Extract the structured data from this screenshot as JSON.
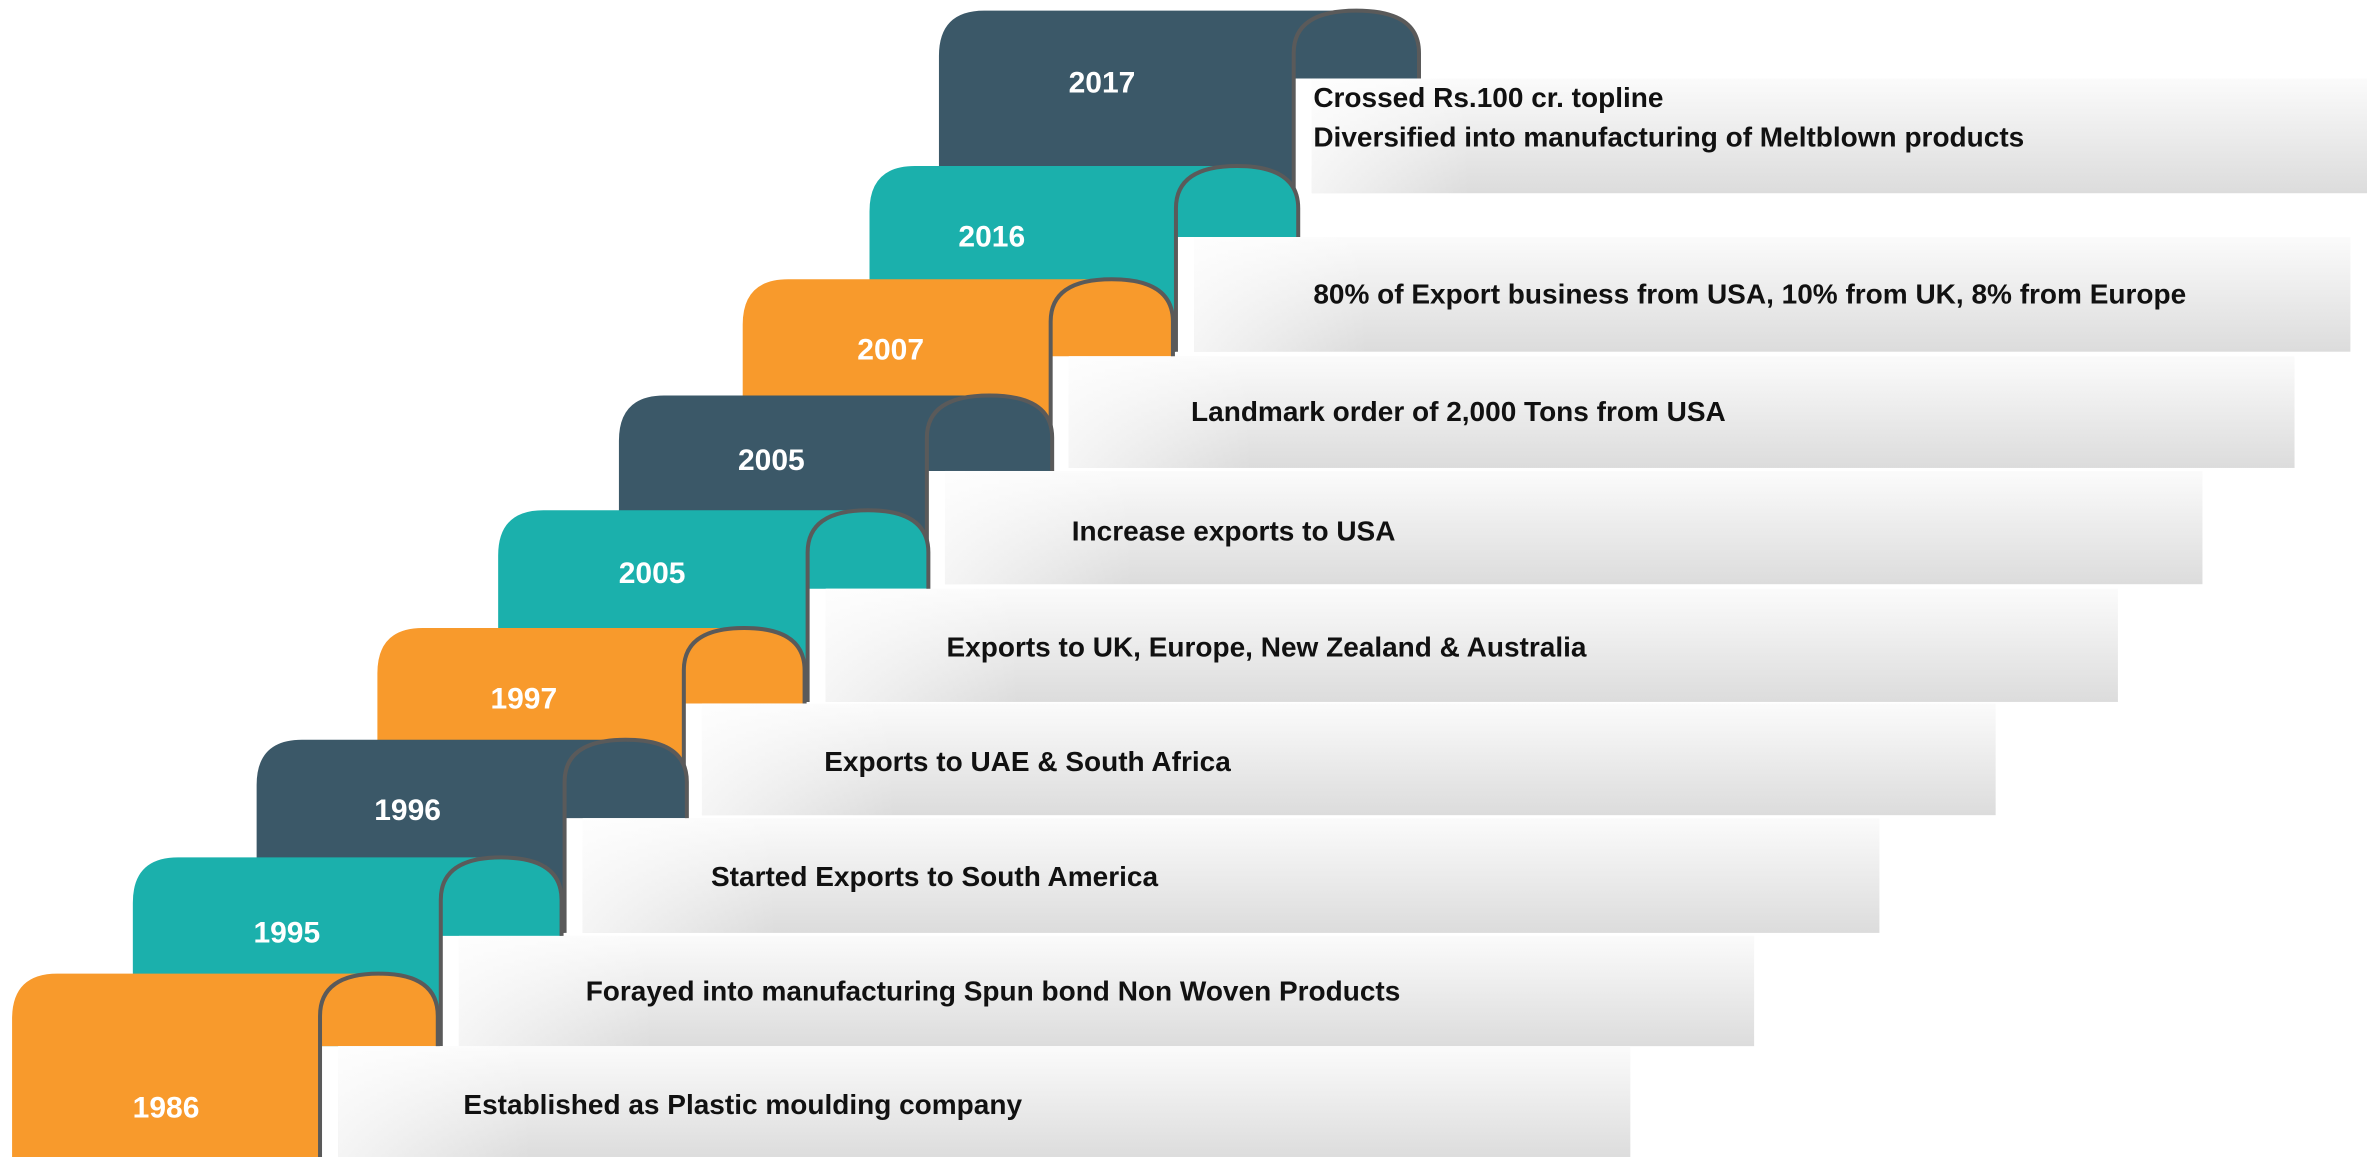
{
  "steps": [
    {
      "year": "1986",
      "lines": [
        "Established as Plastic moulding company"
      ],
      "color": "#f89a2c"
    },
    {
      "year": "1995",
      "lines": [
        "Forayed into manufacturing Spun bond Non Woven Products"
      ],
      "color": "#1bb0ac"
    },
    {
      "year": "1996",
      "lines": [
        "Started Exports to South America"
      ],
      "color": "#3b5868"
    },
    {
      "year": "1997",
      "lines": [
        "Exports to UAE & South Africa"
      ],
      "color": "#f89a2c"
    },
    {
      "year": "2005",
      "lines": [
        "Exports to UK, Europe, New Zealand & Australia"
      ],
      "color": "#1bb0ac"
    },
    {
      "year": "2005",
      "lines": [
        "Increase exports to USA"
      ],
      "color": "#3b5868"
    },
    {
      "year": "2007",
      "lines": [
        "Landmark order of 2,000 Tons from USA"
      ],
      "color": "#f89a2c"
    },
    {
      "year": "2016",
      "lines": [
        "80% of Export business from USA, 10% from UK, 8% from Europe"
      ],
      "color": "#1bb0ac"
    },
    {
      "year": "2017",
      "lines": [
        "Crossed Rs.100 cr. topline",
        "Diversified into manufacturing of Meltblown products"
      ],
      "color": "#3b5868"
    }
  ]
}
